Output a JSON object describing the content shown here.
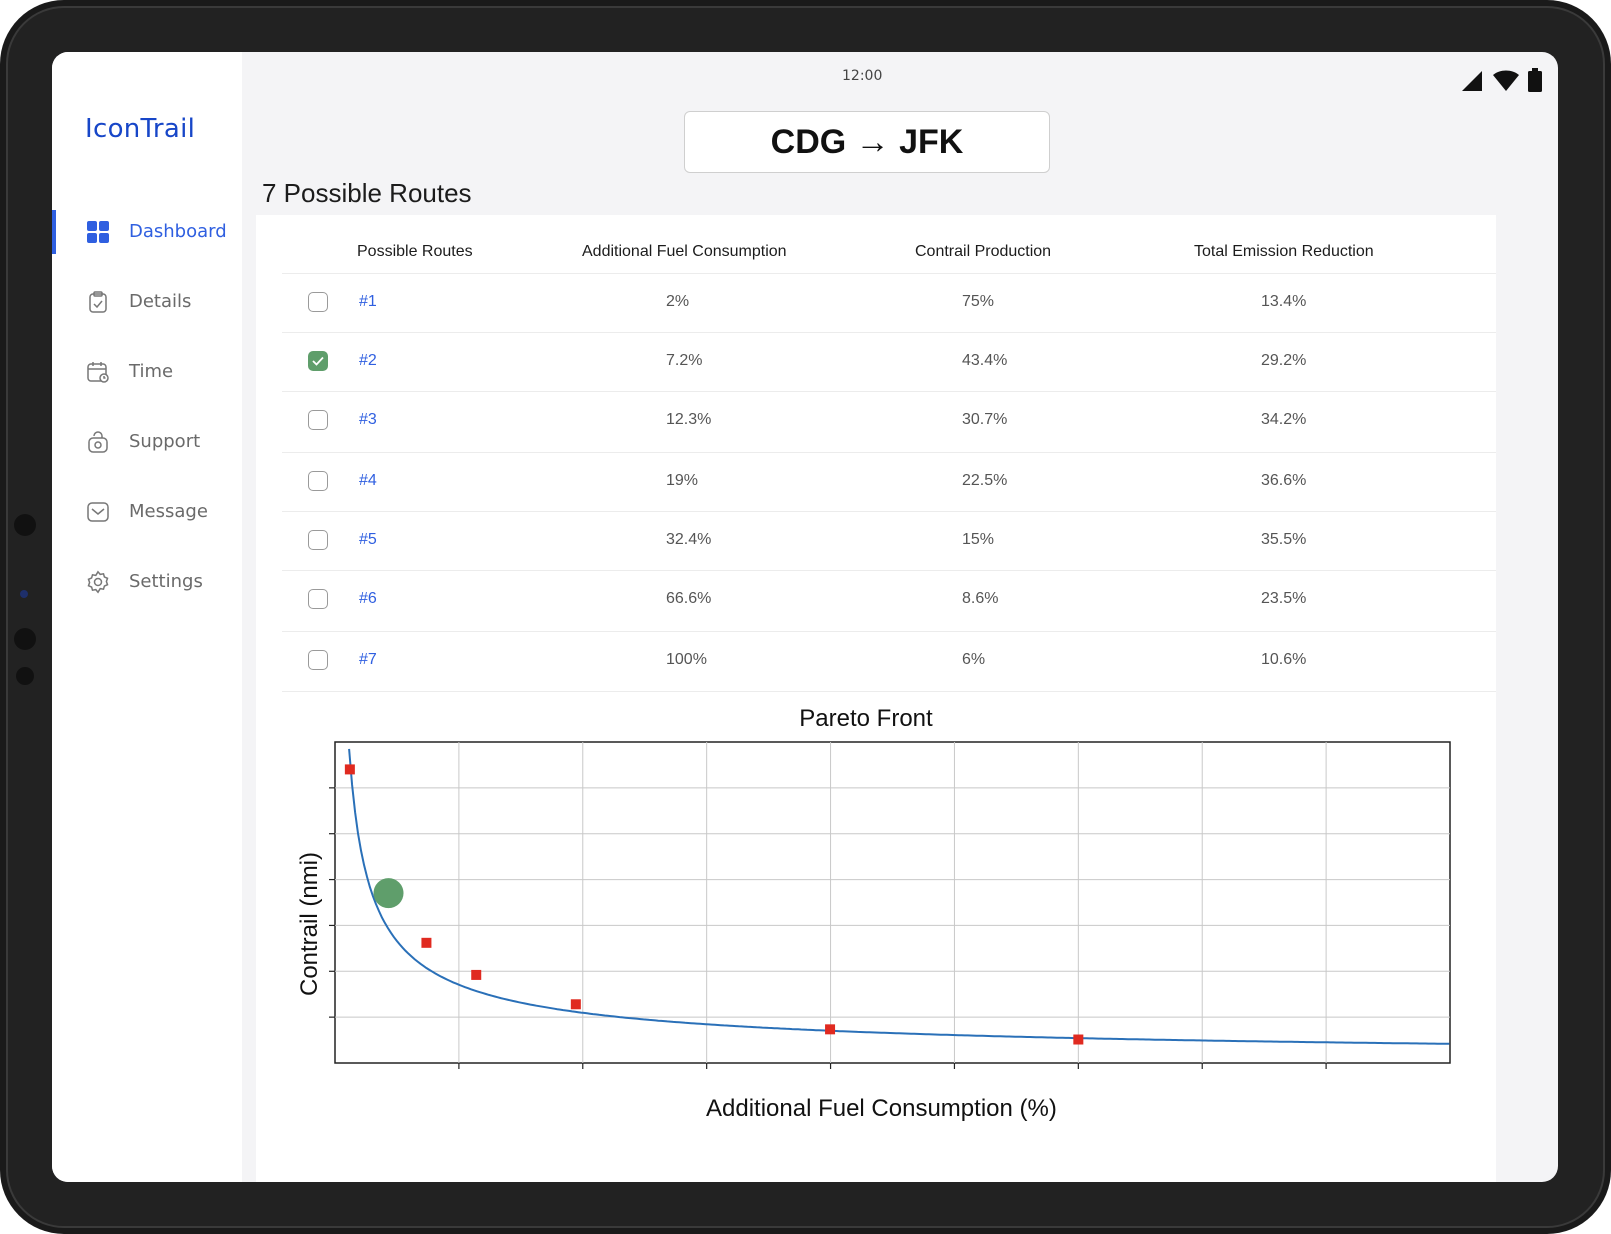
{
  "status": {
    "time": "12:00"
  },
  "brand": "IconTrail",
  "nav": [
    {
      "label": "Dashboard",
      "icon": "dashboard-icon",
      "active": true
    },
    {
      "label": "Details",
      "icon": "clipboard-icon"
    },
    {
      "label": "Time",
      "icon": "calendar-icon"
    },
    {
      "label": "Support",
      "icon": "support-icon"
    },
    {
      "label": "Message",
      "icon": "message-icon"
    },
    {
      "label": "Settings",
      "icon": "gear-icon"
    }
  ],
  "route": {
    "label": "CDG → JFK"
  },
  "routes_title": "7 Possible Routes",
  "table": {
    "headers": [
      "Possible Routes",
      "Additional Fuel Consumption",
      "Contrail Production",
      "Total Emission Reduction"
    ],
    "rows": [
      {
        "id": "#1",
        "fuel": "2%",
        "contrail": "75%",
        "reduction": "13.4%",
        "checked": false
      },
      {
        "id": "#2",
        "fuel": "7.2%",
        "contrail": "43.4%",
        "reduction": "29.2%",
        "checked": true
      },
      {
        "id": "#3",
        "fuel": "12.3%",
        "contrail": "30.7%",
        "reduction": "34.2%",
        "checked": false
      },
      {
        "id": "#4",
        "fuel": "19%",
        "contrail": "22.5%",
        "reduction": "36.6%",
        "checked": false
      },
      {
        "id": "#5",
        "fuel": "32.4%",
        "contrail": "15%",
        "reduction": "35.5%",
        "checked": false
      },
      {
        "id": "#6",
        "fuel": "66.6%",
        "contrail": "8.6%",
        "reduction": "23.5%",
        "checked": false
      },
      {
        "id": "#7",
        "fuel": "100%",
        "contrail": "6%",
        "reduction": "10.6%",
        "checked": false
      }
    ]
  },
  "colors": {
    "accent": "#2f5fe0",
    "check": "#5f9e6b",
    "curve": "#2a70b8",
    "marker": "#e02a20",
    "selected_marker": "#5f9e6b"
  },
  "chart_data": {
    "type": "line",
    "title": "Pareto Front",
    "xlabel": "Additional Fuel Consumption (%)",
    "ylabel": "Contrail (nmi)",
    "series": [
      {
        "x": [
          2,
          12.3,
          19,
          32.4,
          66.6,
          100
        ],
        "y": [
          75,
          30.7,
          22.5,
          15,
          8.6,
          6
        ]
      }
    ],
    "selected_point": {
      "x": 7.2,
      "y": 43.4
    },
    "xlim": [
      0,
      150
    ],
    "ylim": [
      0,
      82
    ],
    "grid": true
  }
}
